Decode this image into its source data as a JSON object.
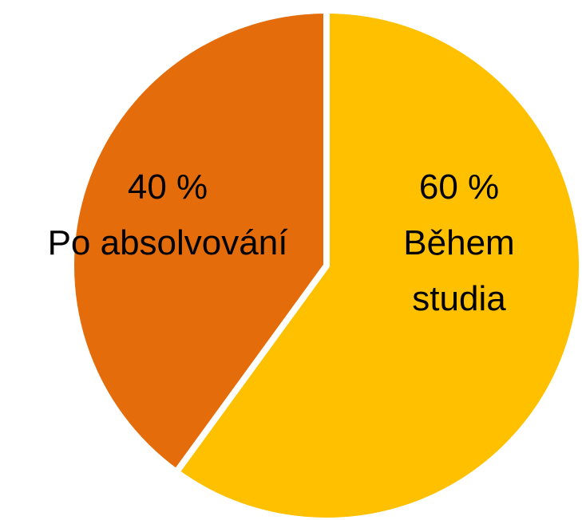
{
  "chart_data": {
    "type": "pie",
    "categories": [
      "Během studia",
      "Po absolvování"
    ],
    "values": [
      60,
      40
    ],
    "value_labels": [
      "60 %",
      "40 %"
    ],
    "colors": [
      "#FFC000",
      "#E46C0A"
    ]
  }
}
